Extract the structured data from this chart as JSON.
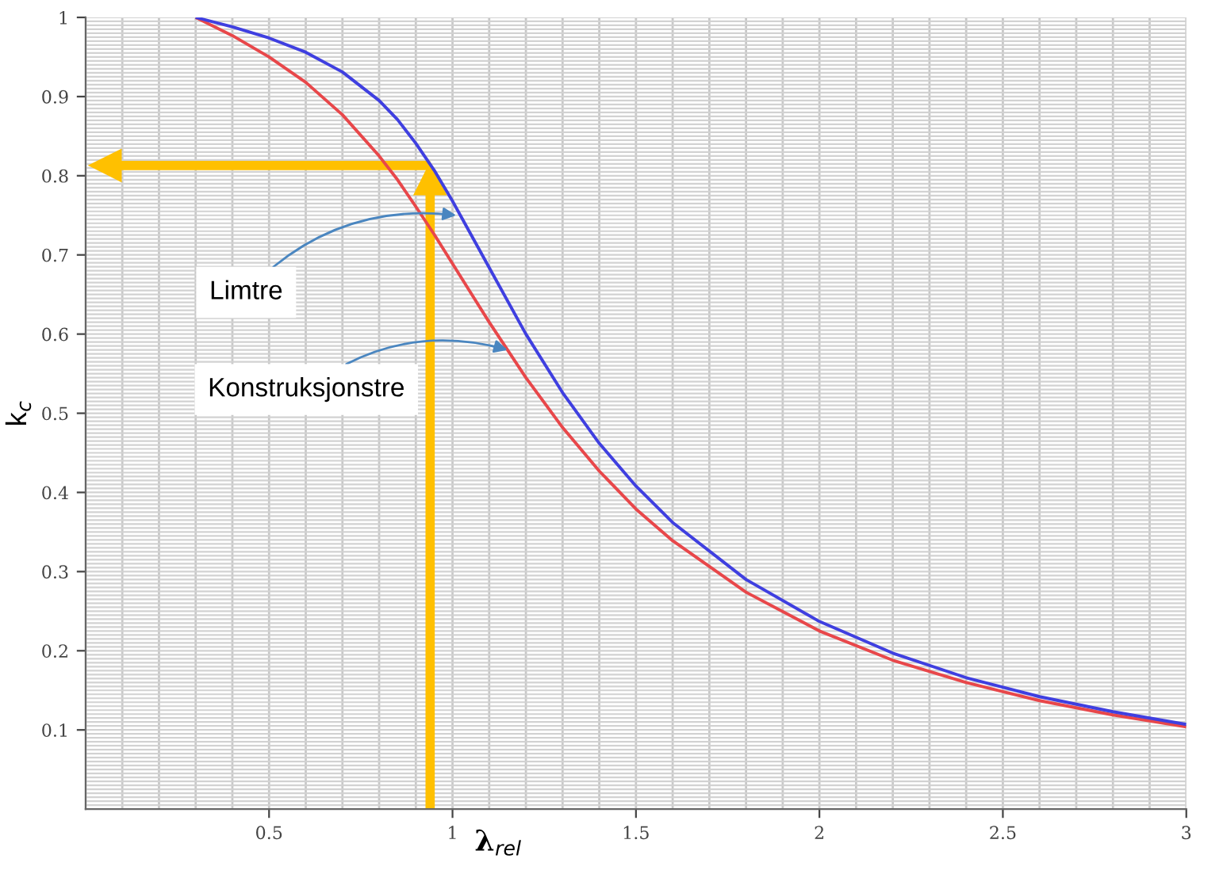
{
  "chart_data": {
    "type": "line",
    "xlabel": "λ$_{rel}$",
    "ylabel": "k$_{c}$",
    "xlim": [
      0,
      3
    ],
    "ylim": [
      0,
      1
    ],
    "xticks": [
      0.5,
      1,
      1.5,
      2,
      2.5,
      3
    ],
    "yticks": [
      0.1,
      0.2,
      0.3,
      0.4,
      0.5,
      0.6,
      0.7,
      0.8,
      0.9,
      1
    ],
    "grid": true,
    "marker": "none",
    "line_style": "solid",
    "series": [
      {
        "color": "#e8474a",
        "x": [
          0.3,
          0.4,
          0.5,
          0.6,
          0.7,
          0.8,
          0.85,
          0.9,
          0.95,
          1.0,
          1.05,
          1.1,
          1.2,
          1.3,
          1.4,
          1.5,
          1.6,
          1.8,
          2.0,
          2.2,
          2.4,
          2.6,
          2.8,
          3.0
        ],
        "values": [
          1.0,
          0.977,
          0.95,
          0.918,
          0.877,
          0.825,
          0.795,
          0.761,
          0.726,
          0.689,
          0.652,
          0.615,
          0.545,
          0.482,
          0.427,
          0.379,
          0.339,
          0.274,
          0.225,
          0.188,
          0.16,
          0.137,
          0.119,
          0.104
        ]
      },
      {
        "color": "#3f3fe0",
        "x": [
          0.3,
          0.4,
          0.5,
          0.6,
          0.7,
          0.8,
          0.85,
          0.9,
          0.95,
          1.0,
          1.05,
          1.1,
          1.2,
          1.3,
          1.4,
          1.5,
          1.6,
          1.8,
          2.0,
          2.2,
          2.4,
          2.6,
          2.8,
          3.0
        ],
        "values": [
          1.0,
          0.988,
          0.974,
          0.956,
          0.931,
          0.895,
          0.871,
          0.841,
          0.807,
          0.768,
          0.726,
          0.684,
          0.6,
          0.526,
          0.462,
          0.408,
          0.362,
          0.29,
          0.237,
          0.197,
          0.166,
          0.142,
          0.123,
          0.107
        ]
      }
    ],
    "annotations": [
      {
        "text": "Limtre",
        "x": 1.01,
        "y": 0.75
      },
      {
        "text": "Konstruksjonstre",
        "x": 1.15,
        "y": 0.58
      }
    ]
  }
}
